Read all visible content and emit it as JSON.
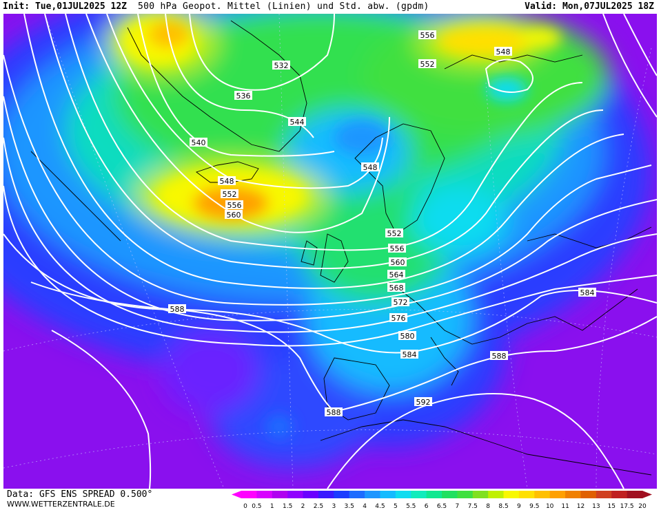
{
  "header": {
    "init": "Init: Tue,01JUL2025 12Z",
    "title": "500 hPa Geopot. Mittel (Linien) und Std. abw. (gpdm)",
    "valid": "Valid: Mon,07JUL2025 18Z"
  },
  "footer": {
    "source": "Data: GFS ENS SPREAD 0.500°",
    "website": "WWW.WETTERZENTRALE.DE"
  },
  "colorbar": {
    "values": [
      "0",
      "0.5",
      "1",
      "1.5",
      "2",
      "2.5",
      "3",
      "3.5",
      "4",
      "4.5",
      "5",
      "5.5",
      "6",
      "6.5",
      "7",
      "7.5",
      "8",
      "8.5",
      "9",
      "9.5",
      "10",
      "11",
      "12",
      "13",
      "15",
      "17.5",
      "20"
    ],
    "colors": [
      "#ff00ff",
      "#d800ff",
      "#b000f0",
      "#9000ff",
      "#6a00ff",
      "#3a1aff",
      "#1b3cff",
      "#1e6cff",
      "#1e96ff",
      "#14bbff",
      "#10dcf0",
      "#10ecbc",
      "#10e890",
      "#20e060",
      "#40e040",
      "#80e020",
      "#c0f000",
      "#f8f800",
      "#ffe000",
      "#ffc000",
      "#ffa000",
      "#f08000",
      "#e06000",
      "#d04020",
      "#c02020",
      "#a01020"
    ]
  },
  "contour_labels": [
    {
      "text": "532"
    },
    {
      "text": "536"
    },
    {
      "text": "540"
    },
    {
      "text": "544"
    },
    {
      "text": "548"
    },
    {
      "text": "552"
    },
    {
      "text": "556"
    },
    {
      "text": "560"
    },
    {
      "text": "548"
    },
    {
      "text": "552"
    },
    {
      "text": "556"
    },
    {
      "text": "548"
    },
    {
      "text": "552"
    },
    {
      "text": "556"
    },
    {
      "text": "560"
    },
    {
      "text": "564"
    },
    {
      "text": "568"
    },
    {
      "text": "572"
    },
    {
      "text": "576"
    },
    {
      "text": "580"
    },
    {
      "text": "584"
    },
    {
      "text": "588"
    },
    {
      "text": "588"
    },
    {
      "text": "588"
    },
    {
      "text": "592"
    },
    {
      "text": "584"
    }
  ]
}
